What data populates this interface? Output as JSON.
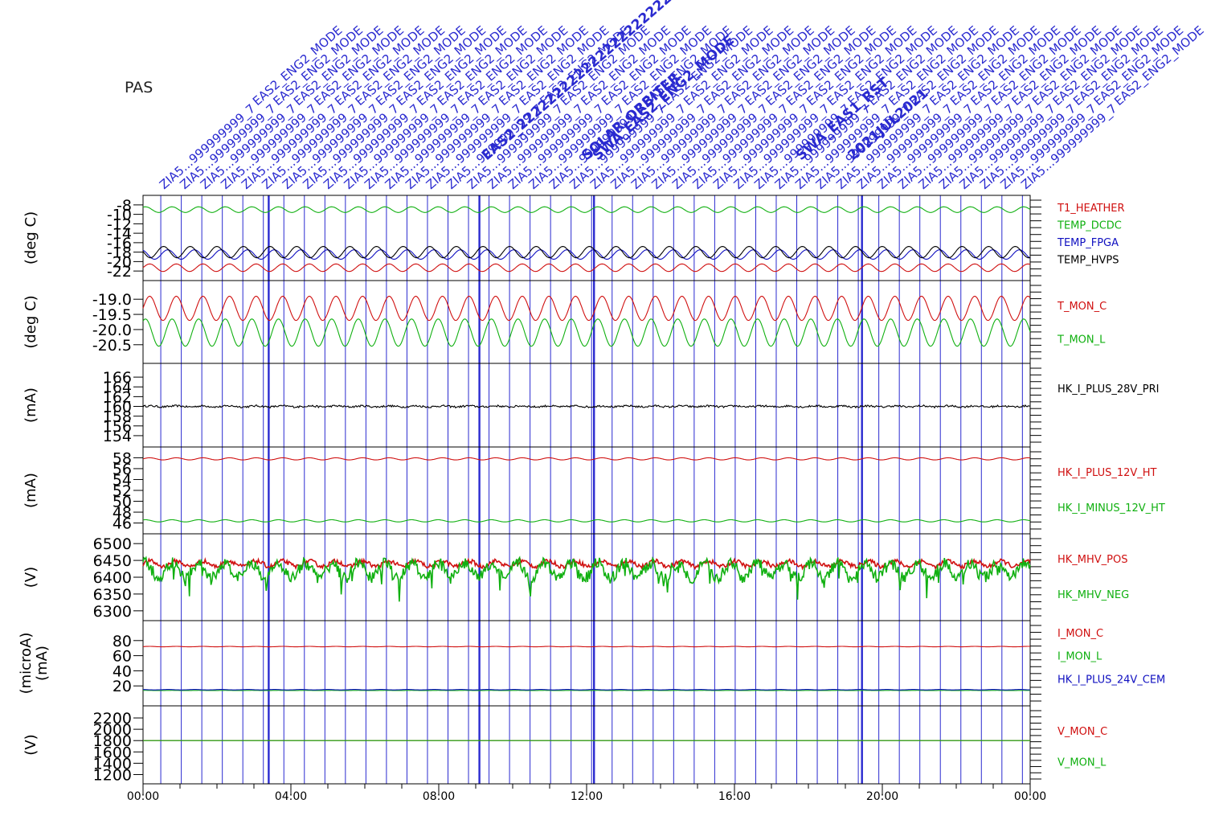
{
  "instrument": "PAS",
  "colors": {
    "red": "#d01010",
    "green": "#10b010",
    "blue": "#1010c0",
    "black": "#000000",
    "annot": "#2a2ad0"
  },
  "time_axis": {
    "ticks": [
      "00:00",
      "04:00",
      "08:00",
      "12:00",
      "16:00",
      "20:00",
      "00:00"
    ],
    "range_hours": [
      0,
      24
    ]
  },
  "annotations": {
    "repeat_labels": [
      "EAS2_ENG2_MODE",
      "ZIA5...999999999_7"
    ],
    "event_labels": [
      "SOLAR_ORBITER",
      "EAS2_2222222222222222222222222",
      "2021JUL2021",
      "SWA_EAS1_RST",
      "SWA_EAS2_ENG2_MODE"
    ]
  },
  "chart_data": [
    {
      "type": "line",
      "panel": "temperatures",
      "ylabel": "(deg C)",
      "y_ticks": [
        "-8",
        "-10",
        "-12",
        "-14",
        "-16",
        "-18",
        "-20",
        "-22"
      ],
      "ylim": [
        -23,
        -7
      ],
      "series": [
        {
          "name": "T1_HEATHER",
          "color": "#d01010",
          "mean": -21.3,
          "amp": 0.8,
          "period_h": 0.72
        },
        {
          "name": "TEMP_DCDC",
          "color": "#10b010",
          "mean": -9.0,
          "amp": 0.6,
          "period_h": 0.72
        },
        {
          "name": "TEMP_FPGA",
          "color": "#1010c0",
          "mean": -18.5,
          "amp": 1.0,
          "period_h": 0.72
        },
        {
          "name": "TEMP_HVPS",
          "color": "#000000",
          "mean": -18.0,
          "amp": 1.2,
          "period_h": 0.72
        }
      ]
    },
    {
      "type": "line",
      "panel": "monitor-temperatures",
      "ylabel": "(deg C)",
      "y_ticks": [
        "-19.0",
        "-19.5",
        "-20.0",
        "-20.5"
      ],
      "ylim": [
        -20.85,
        -18.65
      ],
      "series": [
        {
          "name": "T_MON_C",
          "color": "#d01010",
          "mean": -19.3,
          "amp": 0.4,
          "period_h": 0.72
        },
        {
          "name": "T_MON_L",
          "color": "#10b010",
          "mean": -20.1,
          "amp": 0.45,
          "period_h": 0.72
        }
      ]
    },
    {
      "type": "line",
      "panel": "primary-current",
      "ylabel": "(mA)",
      "y_ticks": [
        "166",
        "164",
        "162",
        "160",
        "158",
        "156",
        "154"
      ],
      "ylim": [
        153.0,
        167.5
      ],
      "series": [
        {
          "name": "HK_I_PLUS_28V_PRI",
          "color": "#000000",
          "mean": 160.0,
          "amp": 0.1,
          "period_h": 0.72
        }
      ]
    },
    {
      "type": "line",
      "panel": "12v-currents",
      "ylabel": "(mA)",
      "y_ticks": [
        "58",
        "56",
        "54",
        "52",
        "50",
        "48",
        "46"
      ],
      "ylim": [
        45.2,
        58.8
      ],
      "series": [
        {
          "name": "HK_I_PLUS_12V_HT",
          "color": "#d01010",
          "mean": 57.8,
          "amp": 0.2,
          "period_h": 0.72
        },
        {
          "name": "HK_I_MINUS_12V_HT",
          "color": "#10b010",
          "mean": 46.4,
          "amp": 0.2,
          "period_h": 0.72
        }
      ]
    },
    {
      "type": "line",
      "panel": "high-voltage",
      "ylabel": "(V)",
      "y_ticks": [
        "6500",
        "6450",
        "6400",
        "6350",
        "6300"
      ],
      "ylim": [
        6290,
        6510
      ],
      "series": [
        {
          "name": "HK_MHV_POS",
          "color": "#d01010",
          "mean": 6440,
          "amp": 8,
          "period_h": 0.72
        },
        {
          "name": "HK_MHV_NEG",
          "color": "#10b010",
          "mean": 6420,
          "amp": 22,
          "period_h": 0.72
        }
      ]
    },
    {
      "type": "line",
      "panel": "monitor-currents",
      "ylabel": "(microA)",
      "ylabel2": "(mA)",
      "y_ticks": [
        "80",
        "60",
        "40",
        "20"
      ],
      "ylim": [
        0,
        100
      ],
      "series": [
        {
          "name": "I_MON_C",
          "color": "#d01010",
          "mean": 72,
          "amp": 0.3,
          "period_h": 0.72
        },
        {
          "name": "I_MON_L",
          "color": "#10b010",
          "mean": 14,
          "amp": 0.1,
          "period_h": 0.72
        },
        {
          "name": "HK_I_PLUS_24V_CEM",
          "color": "#1010c0",
          "mean": 15,
          "amp": 0.3,
          "period_h": 0.72
        }
      ]
    },
    {
      "type": "line",
      "panel": "monitor-voltages",
      "ylabel": "(V)",
      "y_ticks": [
        "2200",
        "2000",
        "1800",
        "1600",
        "1400",
        "1200"
      ],
      "ylim": [
        1150,
        2300
      ],
      "series": [
        {
          "name": "V_MON_C",
          "color": "#d01010",
          "mean": 1800,
          "amp": 0,
          "period_h": 0.72
        },
        {
          "name": "V_MON_L",
          "color": "#10b010",
          "mean": 1800,
          "amp": 0,
          "period_h": 0.72
        }
      ]
    }
  ]
}
